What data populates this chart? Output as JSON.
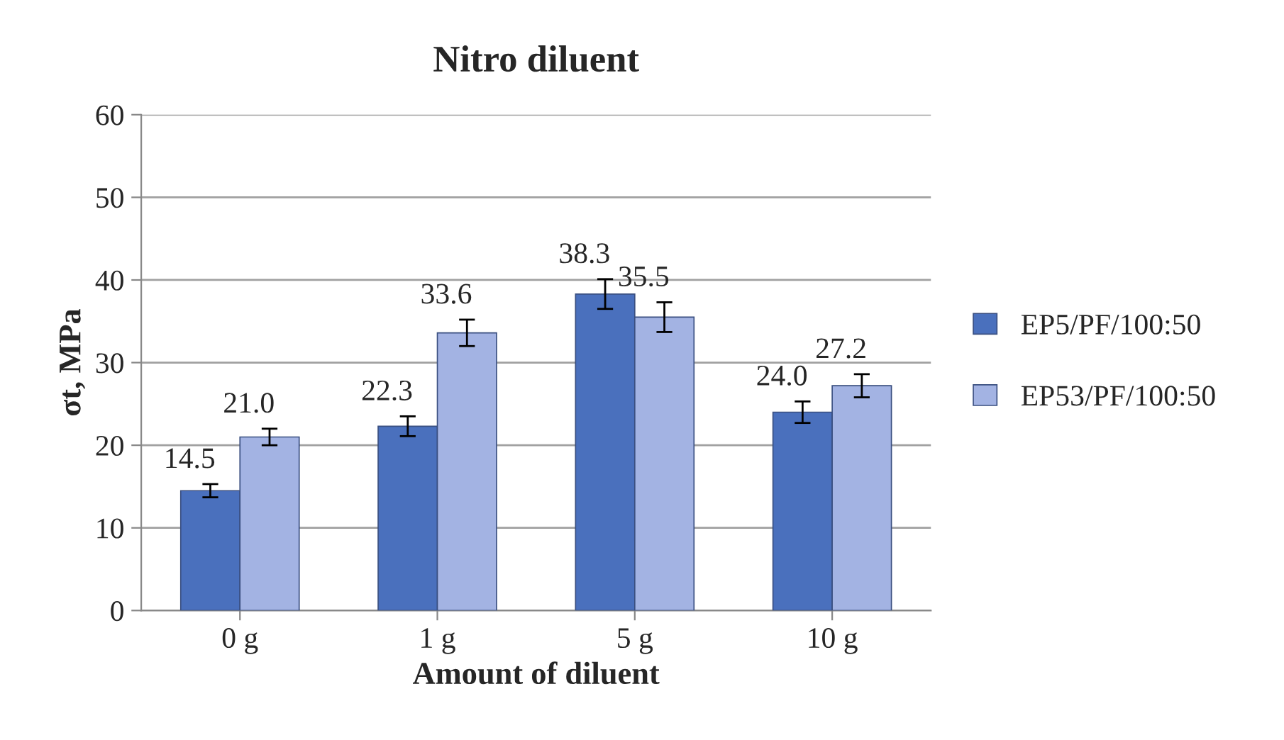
{
  "chart_data": {
    "type": "bar",
    "title": "Nitro diluent",
    "xlabel": "Amount of diluent",
    "ylabel": "σt, MPa",
    "categories": [
      "0 g",
      "1 g",
      "5 g",
      "10 g"
    ],
    "series": [
      {
        "name": "EP5/PF/100:50",
        "color": "#4a70bd",
        "values": [
          14.5,
          22.3,
          38.3,
          24.0
        ],
        "value_labels": [
          "14.5",
          "22.3",
          "38.3",
          "24.0"
        ],
        "errors": [
          0.8,
          1.2,
          1.8,
          1.3
        ]
      },
      {
        "name": "EP53/PF/100:50",
        "color": "#a3b3e3",
        "values": [
          21.0,
          33.6,
          35.5,
          27.2
        ],
        "value_labels": [
          "21.0",
          "33.6",
          "35.5",
          "27.2"
        ],
        "errors": [
          1.0,
          1.6,
          1.8,
          1.4
        ]
      }
    ],
    "ylim": [
      0,
      60
    ],
    "yticks": [
      0,
      10,
      20,
      30,
      40,
      50,
      60
    ],
    "grid": "y",
    "legend": "right"
  }
}
